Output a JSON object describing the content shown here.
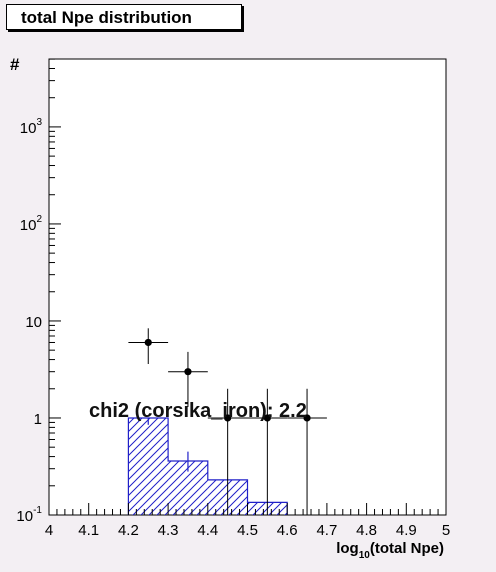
{
  "chart_data": {
    "type": "bar",
    "title": "total Npe distribution",
    "ylabel": "#",
    "xlabel_main": "log",
    "xlabel_sub": "10",
    "xlabel_rest": "(total Npe)",
    "annotation": "chi2 (corsika_iron): 2.2",
    "xlim": [
      4,
      5
    ],
    "ylim_log10": [
      -1,
      3.7
    ],
    "y_scale": "log",
    "grid": false,
    "x_ticks": [
      "4",
      "4.1",
      "4.2",
      "4.3",
      "4.4",
      "4.5",
      "4.6",
      "4.7",
      "4.8",
      "4.9",
      "5"
    ],
    "y_ticks": [
      {
        "label": "10",
        "sup": "-1"
      },
      {
        "label": "1",
        "sup": ""
      },
      {
        "label": "10",
        "sup": ""
      },
      {
        "label": "10",
        "sup": "2"
      },
      {
        "label": "10",
        "sup": "3"
      }
    ],
    "histogram": {
      "fill_color": "#2020c8",
      "bins": [
        {
          "x0": 4.2,
          "x1": 4.3,
          "value": 1.0,
          "err": [
            0.85,
            1.0
          ]
        },
        {
          "x0": 4.3,
          "x1": 4.4,
          "value": 0.36,
          "err": [
            0.28,
            0.45
          ]
        },
        {
          "x0": 4.4,
          "x1": 4.5,
          "value": 0.23
        },
        {
          "x0": 4.5,
          "x1": 4.6,
          "value": 0.135
        }
      ]
    },
    "points": [
      {
        "x": 4.25,
        "y": 6.0,
        "xerr": 0.05,
        "ylow": 3.6,
        "yhigh": 8.4
      },
      {
        "x": 4.35,
        "y": 3.0,
        "xerr": 0.05,
        "ylow": 1.3,
        "yhigh": 4.8
      },
      {
        "x": 4.45,
        "y": 1.0,
        "xerr": 0.05,
        "ylow": 0.1,
        "yhigh": 2.0
      },
      {
        "x": 4.55,
        "y": 1.0,
        "xerr": 0.05,
        "ylow": 0.1,
        "yhigh": 2.0
      },
      {
        "x": 4.65,
        "y": 1.0,
        "xerr": 0.05,
        "ylow": 0.1,
        "yhigh": 2.0
      }
    ]
  }
}
